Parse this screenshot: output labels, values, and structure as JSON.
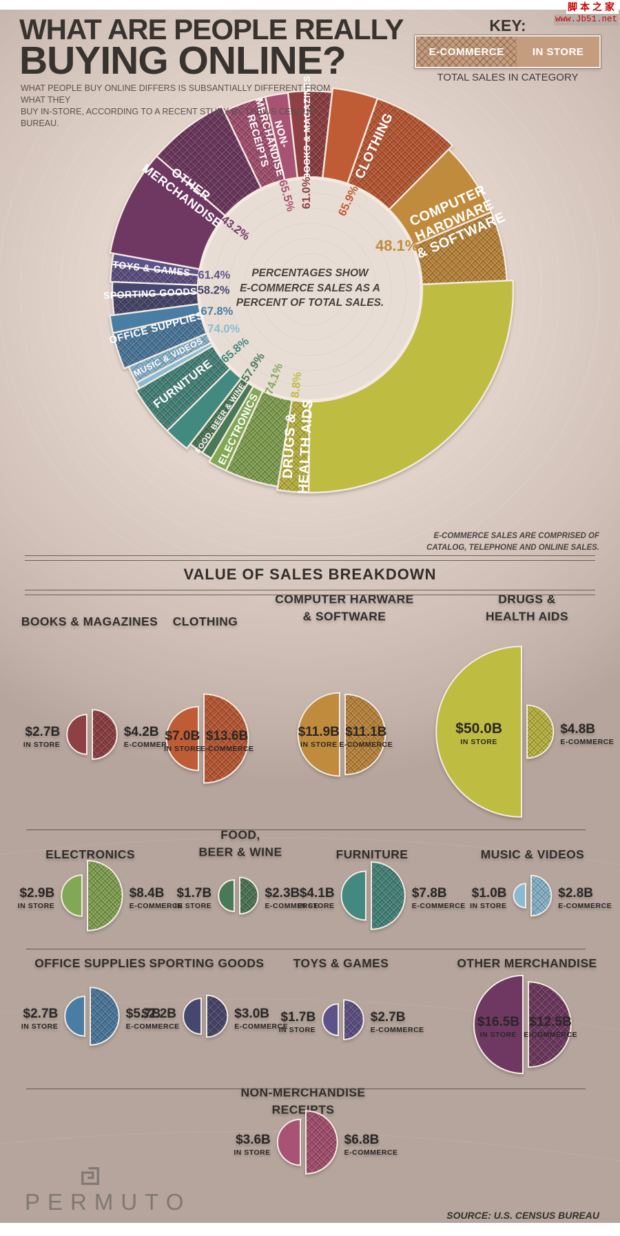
{
  "watermark": {
    "line1": "脚本之家",
    "line2": "www.Jb51.net"
  },
  "header": {
    "title1": "WHAT ARE PEOPLE REALLY",
    "title2": "BUYING ONLINE?",
    "sub1": "WHAT PEOPLE BUY ONLINE DIFFERS IS SUBSANTIALLY DIFFERENT FROM WHAT THEY",
    "sub2": "BUY IN-STORE, ACCORDING TO A RECENT STUDY BY THE US CENSUS BUREAU."
  },
  "key": {
    "label": "KEY:",
    "ecommerce": "E-COMMERCE",
    "in_store": "IN STORE",
    "caption": "TOTAL SALES IN CATEGORY",
    "swatch_color": "#c49d7f"
  },
  "donut": {
    "center_note": [
      "PERCENTAGES SHOW",
      "E-COMMERCE SALES AS A",
      "PERCENT OF TOTAL SALES."
    ],
    "footnote": [
      "E-COMMERCE SALES ARE COMPRISED OF",
      "CATALOG, TELEPHONE AND ONLINE SALES."
    ]
  },
  "breakdown": {
    "title": "VALUE OF SALES BREAKDOWN"
  },
  "footer": {
    "brand": "PERMUTO",
    "source": "SOURCE: U.S. CENSUS BUREAU"
  },
  "chart_data": [
    {
      "type": "pie",
      "variant": "donut",
      "title": "WHAT ARE PEOPLE REALLY BUYING ONLINE?",
      "note": "Wedge size proportional to total sales in category; hatched portion = e-commerce share",
      "legend_position": "top-right",
      "start_angle_deg": -6.4,
      "categories": [
        {
          "label": "BOOKS & MAGAZINES",
          "label_lines": [
            "BOOKS & MAGAZINES"
          ],
          "color": "#8f4045",
          "ecommerce_share_pct": 61.0,
          "ecommerce_share_label": "61.0%",
          "total_sales_billions": 6.9
        },
        {
          "label": "CLOTHING",
          "label_lines": [
            "CLOTHING"
          ],
          "color": "#bf5b35",
          "ecommerce_share_pct": 65.9,
          "ecommerce_share_label": "65.9%",
          "total_sales_billions": 20.6
        },
        {
          "label": "COMPUTER HARDWARE & SOFTWARE",
          "label_lines": [
            "COMPUTER",
            "HARDWARE",
            "& SOFTWARE"
          ],
          "color": "#c08b3d",
          "ecommerce_share_pct": 48.1,
          "ecommerce_share_label": "48.1%",
          "total_sales_billions": 23.0
        },
        {
          "label": "DRUGS & HEALTH AIDS",
          "label_lines": [
            "DRUGS &",
            "HEALTH AIDS"
          ],
          "color": "#bfbc43",
          "ecommerce_share_pct": 8.8,
          "ecommerce_share_label": "8.8%",
          "total_sales_billions": 54.8
        },
        {
          "label": "ELECTRONICS",
          "label_lines": [
            "ELECTRONICS"
          ],
          "color": "#83a854",
          "ecommerce_share_pct": 74.1,
          "ecommerce_share_label": "74.1%",
          "total_sales_billions": 11.3
        },
        {
          "label": "FOOD, BEER & WINE",
          "label_lines": [
            "FOOD, BEER & WINE"
          ],
          "color": "#4a7a58",
          "ecommerce_share_pct": 57.9,
          "ecommerce_share_label": "57.9%",
          "total_sales_billions": 4.0
        },
        {
          "label": "FURNITURE",
          "label_lines": [
            "FURNITURE"
          ],
          "color": "#43897f",
          "ecommerce_share_pct": 65.8,
          "ecommerce_share_label": "65.8%",
          "total_sales_billions": 11.9
        },
        {
          "label": "MUSIC & VIDEOS",
          "label_lines": [
            "MUSIC & VIDEOS"
          ],
          "color": "#8abbd5",
          "ecommerce_share_pct": 74.0,
          "ecommerce_share_label": "74.0%",
          "total_sales_billions": 3.8
        },
        {
          "label": "OFFICE SUPPLIES",
          "label_lines": [
            "OFFICE SUPPLIES"
          ],
          "color": "#4a7da3",
          "ecommerce_share_pct": 67.8,
          "ecommerce_share_label": "67.8%",
          "total_sales_billions": 8.4
        },
        {
          "label": "SPORTING GOODS",
          "label_lines": [
            "SPORTING GOODS"
          ],
          "color": "#45476f",
          "ecommerce_share_pct": 58.2,
          "ecommerce_share_label": "58.2%",
          "total_sales_billions": 5.2
        },
        {
          "label": "TOYS & GAMES",
          "label_lines": [
            "TOYS & GAMES"
          ],
          "color": "#5d538a",
          "ecommerce_share_pct": 61.4,
          "ecommerce_share_label": "61.4%",
          "total_sales_billions": 4.4
        },
        {
          "label": "OTHER MERCHANDISE",
          "label_lines": [
            "OTHER",
            "MERCHANDISE"
          ],
          "color": "#6e3963",
          "ecommerce_share_pct": 43.2,
          "ecommerce_share_label": "43.2%",
          "total_sales_billions": 29.0
        },
        {
          "label": "NON-MERCHANDISE RECEIPTS",
          "label_lines": [
            "NON-",
            "MERCHANDISE",
            "RECEIPTS"
          ],
          "color": "#a85273",
          "ecommerce_share_pct": 65.5,
          "ecommerce_share_label": "65.5%",
          "total_sales_billions": 10.4
        }
      ]
    },
    {
      "type": "semicircle-pairs",
      "title": "VALUE OF SALES BREAKDOWN",
      "unit": "billions USD",
      "note": "Left solid semicircle = in-store sales, right hatched semicircle = e-commerce sales; area proportional to value",
      "items": [
        {
          "title_lines": [
            "BOOKS & MAGAZINES"
          ],
          "color": "#8f4045",
          "in_store_billions": 2.7,
          "in_store_label": "$2.7B",
          "in_store_sublabel": "IN STORE",
          "ecommerce_billions": 4.2,
          "ecommerce_label": "$4.2B",
          "ecommerce_sublabel": "E-COMMERCE"
        },
        {
          "title_lines": [
            "CLOTHING"
          ],
          "color": "#bf5b35",
          "in_store_billions": 7.0,
          "in_store_label": "$7.0B",
          "in_store_sublabel": "IN STORE",
          "ecommerce_billions": 13.6,
          "ecommerce_label": "$13.6B",
          "ecommerce_sublabel": "E-COMMERCE"
        },
        {
          "title_lines": [
            "COMPUTER HARWARE",
            "& SOFTWARE"
          ],
          "color": "#c08b3d",
          "in_store_billions": 11.9,
          "in_store_label": "$11.9B",
          "in_store_sublabel": "IN STORE",
          "ecommerce_billions": 11.1,
          "ecommerce_label": "$11.1B",
          "ecommerce_sublabel": "E-COMMERCE"
        },
        {
          "title_lines": [
            "DRUGS &",
            "HEALTH AIDS"
          ],
          "color": "#bfbc43",
          "in_store_billions": 50.0,
          "in_store_label": "$50.0B",
          "in_store_sublabel": "IN STORE",
          "ecommerce_billions": 4.8,
          "ecommerce_label": "$4.8B",
          "ecommerce_sublabel": "E-COMMERCE"
        },
        {
          "title_lines": [
            "ELECTRONICS"
          ],
          "color": "#83a854",
          "in_store_billions": 2.9,
          "in_store_label": "$2.9B",
          "in_store_sublabel": "IN STORE",
          "ecommerce_billions": 8.4,
          "ecommerce_label": "$8.4B",
          "ecommerce_sublabel": "E-COMMERCE"
        },
        {
          "title_lines": [
            "FOOD,",
            "BEER & WINE"
          ],
          "color": "#4a7a58",
          "in_store_billions": 1.7,
          "in_store_label": "$1.7B",
          "in_store_sublabel": "IN STORE",
          "ecommerce_billions": 2.3,
          "ecommerce_label": "$2.3B",
          "ecommerce_sublabel": "E-COMMERCE"
        },
        {
          "title_lines": [
            "FURNITURE"
          ],
          "color": "#43897f",
          "in_store_billions": 4.1,
          "in_store_label": "$4.1B",
          "in_store_sublabel": "IN STORE",
          "ecommerce_billions": 7.8,
          "ecommerce_label": "$7.8B",
          "ecommerce_sublabel": "E-COMMERCE"
        },
        {
          "title_lines": [
            "MUSIC & VIDEOS"
          ],
          "color": "#8abbd5",
          "in_store_billions": 1.0,
          "in_store_label": "$1.0B",
          "in_store_sublabel": "IN STORE",
          "ecommerce_billions": 2.8,
          "ecommerce_label": "$2.8B",
          "ecommerce_sublabel": "E-COMMERCE"
        },
        {
          "title_lines": [
            "OFFICE SUPPLIES"
          ],
          "color": "#4a7da3",
          "in_store_billions": 2.7,
          "in_store_label": "$2.7B",
          "in_store_sublabel": "IN STORE",
          "ecommerce_billions": 5.7,
          "ecommerce_label": "$5.7B",
          "ecommerce_sublabel": "E-COMMERCE"
        },
        {
          "title_lines": [
            "SPORTING GOODS"
          ],
          "color": "#45476f",
          "in_store_billions": 2.2,
          "in_store_label": "$2.2B",
          "in_store_sublabel": "",
          "ecommerce_billions": 3.0,
          "ecommerce_label": "$3.0B",
          "ecommerce_sublabel": "E-COMMERCE"
        },
        {
          "title_lines": [
            "TOYS & GAMES"
          ],
          "color": "#5d538a",
          "in_store_billions": 1.7,
          "in_store_label": "$1.7B",
          "in_store_sublabel": "IN STORE",
          "ecommerce_billions": 2.7,
          "ecommerce_label": "$2.7B",
          "ecommerce_sublabel": "E-COMMERCE"
        },
        {
          "title_lines": [
            "OTHER MERCHANDISE"
          ],
          "color": "#6e3963",
          "in_store_billions": 16.5,
          "in_store_label": "$16.5B",
          "in_store_sublabel": "IN STORE",
          "ecommerce_billions": 12.5,
          "ecommerce_label": "$12.5B",
          "ecommerce_sublabel": "E-COMMERCE"
        },
        {
          "title_lines": [
            "NON-MERCHANDISE",
            "RECEIPTS"
          ],
          "color": "#a85273",
          "in_store_billions": 3.6,
          "in_store_label": "$3.6B",
          "in_store_sublabel": "IN STORE",
          "ecommerce_billions": 6.8,
          "ecommerce_label": "$6.8B",
          "ecommerce_sublabel": "E-COMMERCE"
        }
      ]
    }
  ]
}
